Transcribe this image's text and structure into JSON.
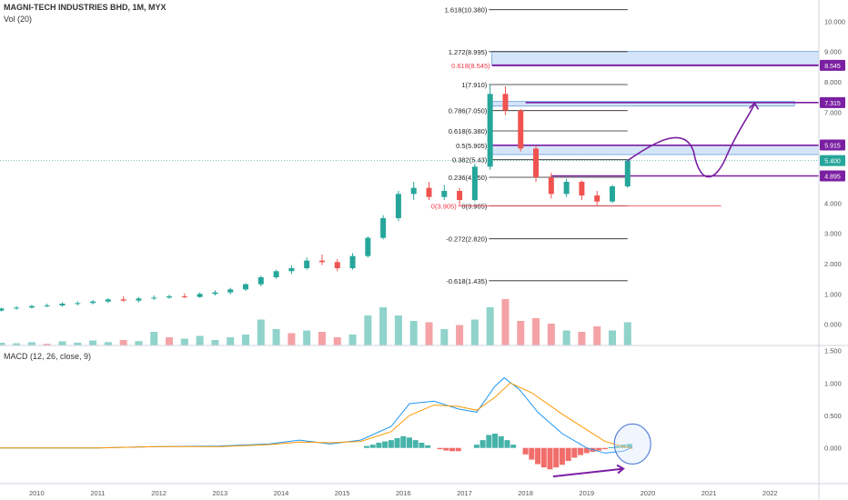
{
  "header": {
    "title": "MAGNI-TECH INDUSTRIES BHD, 1M, MYX",
    "volume_label": "Vol (20)"
  },
  "macd": {
    "label": "MACD (12, 26, close, 9)"
  },
  "colors": {
    "up": "#26a69a",
    "down": "#ef5350",
    "upVol": "#8fd3cb",
    "downVol": "#f4a2a6",
    "macd": "#2196f3",
    "signal": "#ff9800",
    "purple": "#7b1fa2",
    "zone": "#b9d3f5",
    "fibRed": "#f23645"
  },
  "chart_data": [
    {
      "type": "candlestick",
      "title": "MAGNI-TECH INDUSTRIES BHD, 1M, MYX",
      "x_ticks": [
        "2010",
        "2011",
        "2012",
        "2013",
        "2014",
        "2015",
        "2016",
        "2017",
        "2018",
        "2019",
        "2020",
        "2021",
        "2022"
      ],
      "y_ticks": [
        "0.000",
        "1.000",
        "2.000",
        "3.000",
        "4.000",
        "5.000",
        "6.000",
        "7.000",
        "8.000",
        "9.000",
        "10.000"
      ],
      "yrange": [
        -0.7,
        10.7
      ],
      "candles": [
        {
          "t": 2009.42,
          "o": 0.45,
          "h": 0.55,
          "l": 0.42,
          "c": 0.52
        },
        {
          "t": 2009.67,
          "o": 0.52,
          "h": 0.6,
          "l": 0.48,
          "c": 0.55
        },
        {
          "t": 2009.92,
          "o": 0.55,
          "h": 0.64,
          "l": 0.52,
          "c": 0.6
        },
        {
          "t": 2010.17,
          "o": 0.6,
          "h": 0.68,
          "l": 0.56,
          "c": 0.62
        },
        {
          "t": 2010.42,
          "o": 0.62,
          "h": 0.72,
          "l": 0.58,
          "c": 0.68
        },
        {
          "t": 2010.67,
          "o": 0.68,
          "h": 0.76,
          "l": 0.62,
          "c": 0.7
        },
        {
          "t": 2010.92,
          "o": 0.7,
          "h": 0.8,
          "l": 0.66,
          "c": 0.75
        },
        {
          "t": 2011.17,
          "o": 0.75,
          "h": 0.86,
          "l": 0.7,
          "c": 0.82
        },
        {
          "t": 2011.42,
          "o": 0.82,
          "h": 0.92,
          "l": 0.74,
          "c": 0.78
        },
        {
          "t": 2011.67,
          "o": 0.78,
          "h": 0.9,
          "l": 0.72,
          "c": 0.85
        },
        {
          "t": 2011.92,
          "o": 0.85,
          "h": 0.95,
          "l": 0.8,
          "c": 0.88
        },
        {
          "t": 2012.17,
          "o": 0.88,
          "h": 0.98,
          "l": 0.84,
          "c": 0.92
        },
        {
          "t": 2012.42,
          "o": 0.92,
          "h": 1.02,
          "l": 0.86,
          "c": 0.9
        },
        {
          "t": 2012.67,
          "o": 0.9,
          "h": 1.05,
          "l": 0.87,
          "c": 1.0
        },
        {
          "t": 2012.92,
          "o": 1.0,
          "h": 1.12,
          "l": 0.95,
          "c": 1.05
        },
        {
          "t": 2013.17,
          "o": 1.05,
          "h": 1.2,
          "l": 0.98,
          "c": 1.15
        },
        {
          "t": 2013.42,
          "o": 1.15,
          "h": 1.35,
          "l": 1.1,
          "c": 1.32
        },
        {
          "t": 2013.67,
          "o": 1.32,
          "h": 1.6,
          "l": 1.25,
          "c": 1.55
        },
        {
          "t": 2013.92,
          "o": 1.55,
          "h": 1.8,
          "l": 1.5,
          "c": 1.75
        },
        {
          "t": 2014.17,
          "o": 1.75,
          "h": 1.95,
          "l": 1.65,
          "c": 1.85
        },
        {
          "t": 2014.42,
          "o": 1.85,
          "h": 2.2,
          "l": 1.8,
          "c": 2.1
        },
        {
          "t": 2014.67,
          "o": 2.1,
          "h": 2.3,
          "l": 1.95,
          "c": 2.05
        },
        {
          "t": 2014.92,
          "o": 2.05,
          "h": 2.15,
          "l": 1.75,
          "c": 1.85
        },
        {
          "t": 2015.17,
          "o": 1.85,
          "h": 2.35,
          "l": 1.8,
          "c": 2.25
        },
        {
          "t": 2015.42,
          "o": 2.25,
          "h": 2.9,
          "l": 2.2,
          "c": 2.85
        },
        {
          "t": 2015.67,
          "o": 2.85,
          "h": 3.6,
          "l": 2.8,
          "c": 3.5
        },
        {
          "t": 2015.92,
          "o": 3.5,
          "h": 4.4,
          "l": 3.4,
          "c": 4.3
        },
        {
          "t": 2016.17,
          "o": 4.3,
          "h": 4.7,
          "l": 4.1,
          "c": 4.5
        },
        {
          "t": 2016.42,
          "o": 4.5,
          "h": 4.7,
          "l": 4.1,
          "c": 4.2
        },
        {
          "t": 2016.67,
          "o": 4.2,
          "h": 4.6,
          "l": 4.1,
          "c": 4.4
        },
        {
          "t": 2016.92,
          "o": 4.4,
          "h": 4.5,
          "l": 3.9,
          "c": 4.1
        },
        {
          "t": 2017.17,
          "o": 4.1,
          "h": 5.3,
          "l": 4.05,
          "c": 5.2
        },
        {
          "t": 2017.42,
          "o": 5.2,
          "h": 7.91,
          "l": 5.1,
          "c": 7.6
        },
        {
          "t": 2017.67,
          "o": 7.6,
          "h": 7.85,
          "l": 6.9,
          "c": 7.05
        },
        {
          "t": 2017.92,
          "o": 7.05,
          "h": 7.1,
          "l": 5.7,
          "c": 5.8
        },
        {
          "t": 2018.17,
          "o": 5.8,
          "h": 5.9,
          "l": 4.7,
          "c": 4.85
        },
        {
          "t": 2018.42,
          "o": 4.85,
          "h": 5.0,
          "l": 4.15,
          "c": 4.3
        },
        {
          "t": 2018.67,
          "o": 4.3,
          "h": 4.8,
          "l": 4.2,
          "c": 4.7
        },
        {
          "t": 2018.92,
          "o": 4.7,
          "h": 4.75,
          "l": 4.1,
          "c": 4.25
        },
        {
          "t": 2019.17,
          "o": 4.25,
          "h": 4.4,
          "l": 3.9,
          "c": 4.05
        },
        {
          "t": 2019.42,
          "o": 4.05,
          "h": 4.6,
          "l": 4.0,
          "c": 4.55
        },
        {
          "t": 2019.67,
          "o": 4.55,
          "h": 5.45,
          "l": 4.5,
          "c": 5.4
        }
      ],
      "volume": [
        {
          "t": 2009.42,
          "v": 0.1,
          "up": true
        },
        {
          "t": 2009.67,
          "v": 0.08,
          "up": true
        },
        {
          "t": 2009.92,
          "v": 0.12,
          "up": true
        },
        {
          "t": 2010.17,
          "v": 0.06,
          "up": false
        },
        {
          "t": 2010.42,
          "v": 0.15,
          "up": true
        },
        {
          "t": 2010.67,
          "v": 0.1,
          "up": true
        },
        {
          "t": 2010.92,
          "v": 0.18,
          "up": true
        },
        {
          "t": 2011.17,
          "v": 0.12,
          "up": true
        },
        {
          "t": 2011.42,
          "v": 0.2,
          "up": false
        },
        {
          "t": 2011.67,
          "v": 0.16,
          "up": true
        },
        {
          "t": 2011.92,
          "v": 0.5,
          "up": true
        },
        {
          "t": 2012.17,
          "v": 0.3,
          "up": false
        },
        {
          "t": 2012.42,
          "v": 0.25,
          "up": true
        },
        {
          "t": 2012.67,
          "v": 0.35,
          "up": true
        },
        {
          "t": 2012.92,
          "v": 0.2,
          "up": true
        },
        {
          "t": 2013.17,
          "v": 0.3,
          "up": true
        },
        {
          "t": 2013.42,
          "v": 0.4,
          "up": true
        },
        {
          "t": 2013.67,
          "v": 0.95,
          "up": true
        },
        {
          "t": 2013.92,
          "v": 0.6,
          "up": true
        },
        {
          "t": 2014.17,
          "v": 0.45,
          "up": false
        },
        {
          "t": 2014.42,
          "v": 0.55,
          "up": true
        },
        {
          "t": 2014.67,
          "v": 0.5,
          "up": false
        },
        {
          "t": 2014.92,
          "v": 0.3,
          "up": false
        },
        {
          "t": 2015.17,
          "v": 0.4,
          "up": true
        },
        {
          "t": 2015.42,
          "v": 1.1,
          "up": true
        },
        {
          "t": 2015.67,
          "v": 1.4,
          "up": true
        },
        {
          "t": 2015.92,
          "v": 1.1,
          "up": true
        },
        {
          "t": 2016.17,
          "v": 0.9,
          "up": true
        },
        {
          "t": 2016.42,
          "v": 0.85,
          "up": false
        },
        {
          "t": 2016.67,
          "v": 0.6,
          "up": true
        },
        {
          "t": 2016.92,
          "v": 0.75,
          "up": false
        },
        {
          "t": 2017.17,
          "v": 0.95,
          "up": true
        },
        {
          "t": 2017.42,
          "v": 1.4,
          "up": true
        },
        {
          "t": 2017.67,
          "v": 1.7,
          "up": false
        },
        {
          "t": 2017.92,
          "v": 0.9,
          "up": false
        },
        {
          "t": 2018.17,
          "v": 1.0,
          "up": false
        },
        {
          "t": 2018.42,
          "v": 0.8,
          "up": false
        },
        {
          "t": 2018.67,
          "v": 0.55,
          "up": true
        },
        {
          "t": 2018.92,
          "v": 0.5,
          "up": false
        },
        {
          "t": 2019.17,
          "v": 0.7,
          "up": false
        },
        {
          "t": 2019.42,
          "v": 0.55,
          "up": true
        },
        {
          "t": 2019.67,
          "v": 0.85,
          "up": true
        }
      ],
      "fib_levels": [
        {
          "label": "1.618(10.380)",
          "value": 10.38
        },
        {
          "label": "1.272(8.995)",
          "value": 8.995
        },
        {
          "label": "1(7.910)",
          "value": 7.91
        },
        {
          "label": "0.786(7.050)",
          "value": 7.05
        },
        {
          "label": "0.618(6.380)",
          "value": 6.38
        },
        {
          "label": "0.5(5.905)",
          "value": 5.905
        },
        {
          "label": "0.382(5.43)",
          "value": 5.43
        },
        {
          "label": "0.236(4.850)",
          "value": 4.85
        },
        {
          "label": "0(3.905)",
          "value": 3.905
        },
        {
          "label": "-0.272(2.820)",
          "value": 2.82
        },
        {
          "label": "-0.618(1.435)",
          "value": 1.435
        }
      ],
      "fib_red": [
        {
          "label": "0.618(8.545)",
          "value": 8.545
        },
        {
          "label": "0(3.905)",
          "value": 3.905
        }
      ],
      "zones": [
        [
          8.55,
          9.0
        ],
        [
          7.2,
          7.35
        ],
        [
          5.6,
          5.905
        ]
      ],
      "level_badges": [
        {
          "label": "8.545",
          "value": 8.545,
          "color": "#7b1fa2"
        },
        {
          "label": "7.315",
          "value": 7.315,
          "color": "#7b1fa2"
        },
        {
          "label": "5.915",
          "value": 5.915,
          "color": "#7b1fa2"
        },
        {
          "label": "5.400",
          "value": 5.4,
          "color": "#26a69a"
        },
        {
          "label": "4.895",
          "value": 4.895,
          "color": "#7b1fa2"
        }
      ]
    },
    {
      "type": "macd",
      "title": "MACD (12, 26, close, 9)",
      "y_ticks": [
        "0.000",
        "0.500",
        "1.000",
        "1.500"
      ],
      "yrange": [
        -0.55,
        1.55
      ],
      "macd_line": [
        [
          2009.4,
          0.0
        ],
        [
          2011,
          0.0
        ],
        [
          2012,
          0.02
        ],
        [
          2013,
          0.03
        ],
        [
          2013.8,
          0.06
        ],
        [
          2014.3,
          0.12
        ],
        [
          2014.8,
          0.06
        ],
        [
          2015.3,
          0.12
        ],
        [
          2015.8,
          0.33
        ],
        [
          2016.1,
          0.68
        ],
        [
          2016.5,
          0.72
        ],
        [
          2016.9,
          0.6
        ],
        [
          2017.2,
          0.55
        ],
        [
          2017.5,
          0.95
        ],
        [
          2017.65,
          1.08
        ],
        [
          2017.9,
          0.9
        ],
        [
          2018.2,
          0.55
        ],
        [
          2018.6,
          0.22
        ],
        [
          2019.0,
          0.0
        ],
        [
          2019.3,
          -0.08
        ],
        [
          2019.6,
          -0.05
        ],
        [
          2019.75,
          0.01
        ]
      ],
      "signal_line": [
        [
          2009.4,
          0.0
        ],
        [
          2011,
          0.0
        ],
        [
          2012,
          0.02
        ],
        [
          2013,
          0.02
        ],
        [
          2013.8,
          0.05
        ],
        [
          2014.3,
          0.09
        ],
        [
          2014.8,
          0.08
        ],
        [
          2015.3,
          0.1
        ],
        [
          2015.8,
          0.25
        ],
        [
          2016.1,
          0.5
        ],
        [
          2016.5,
          0.66
        ],
        [
          2016.9,
          0.64
        ],
        [
          2017.2,
          0.58
        ],
        [
          2017.5,
          0.78
        ],
        [
          2017.75,
          1.0
        ],
        [
          2018.1,
          0.85
        ],
        [
          2018.6,
          0.52
        ],
        [
          2019.0,
          0.28
        ],
        [
          2019.3,
          0.1
        ],
        [
          2019.6,
          0.02
        ],
        [
          2019.75,
          -0.01
        ]
      ],
      "histogram": [
        {
          "t": 2015.4,
          "v": 0.03
        },
        {
          "t": 2015.5,
          "v": 0.05
        },
        {
          "t": 2015.6,
          "v": 0.08
        },
        {
          "t": 2015.7,
          "v": 0.1
        },
        {
          "t": 2015.8,
          "v": 0.12
        },
        {
          "t": 2015.9,
          "v": 0.15
        },
        {
          "t": 2016.0,
          "v": 0.18
        },
        {
          "t": 2016.1,
          "v": 0.16
        },
        {
          "t": 2016.2,
          "v": 0.12
        },
        {
          "t": 2016.3,
          "v": 0.08
        },
        {
          "t": 2016.4,
          "v": 0.04
        },
        {
          "t": 2016.6,
          "v": -0.02
        },
        {
          "t": 2016.7,
          "v": -0.04
        },
        {
          "t": 2016.8,
          "v": -0.05
        },
        {
          "t": 2016.9,
          "v": -0.05
        },
        {
          "t": 2017.2,
          "v": 0.05
        },
        {
          "t": 2017.3,
          "v": 0.12
        },
        {
          "t": 2017.4,
          "v": 0.2
        },
        {
          "t": 2017.5,
          "v": 0.22
        },
        {
          "t": 2017.6,
          "v": 0.18
        },
        {
          "t": 2017.7,
          "v": 0.12
        },
        {
          "t": 2017.8,
          "v": 0.05
        },
        {
          "t": 2018.0,
          "v": -0.1
        },
        {
          "t": 2018.1,
          "v": -0.18
        },
        {
          "t": 2018.2,
          "v": -0.25
        },
        {
          "t": 2018.3,
          "v": -0.3
        },
        {
          "t": 2018.4,
          "v": -0.33
        },
        {
          "t": 2018.5,
          "v": -0.3
        },
        {
          "t": 2018.6,
          "v": -0.26
        },
        {
          "t": 2018.7,
          "v": -0.2
        },
        {
          "t": 2018.8,
          "v": -0.15
        },
        {
          "t": 2018.9,
          "v": -0.11
        },
        {
          "t": 2019.0,
          "v": -0.08
        },
        {
          "t": 2019.1,
          "v": -0.06
        },
        {
          "t": 2019.2,
          "v": -0.04
        },
        {
          "t": 2019.3,
          "v": -0.02
        },
        {
          "t": 2019.4,
          "v": 0.01
        },
        {
          "t": 2019.5,
          "v": 0.03
        },
        {
          "t": 2019.6,
          "v": 0.05
        },
        {
          "t": 2019.7,
          "v": 0.06
        }
      ]
    }
  ]
}
